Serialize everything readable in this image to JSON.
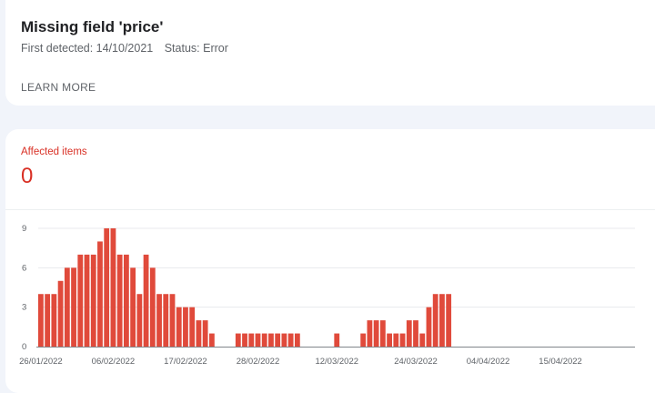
{
  "issue": {
    "title": "Missing field 'price'",
    "first_detected": "First detected: 14/10/2021",
    "status": "Status: Error",
    "learn_more": "LEARN MORE"
  },
  "affected": {
    "label": "Affected items",
    "count": "0"
  },
  "colors": {
    "bar": "#e04a3b",
    "accent": "#d93025"
  },
  "chart_data": {
    "type": "bar",
    "title": "",
    "xlabel": "",
    "ylabel": "",
    "ylim": [
      0,
      9
    ],
    "yticks": [
      0,
      3,
      6,
      9
    ],
    "grid": true,
    "start_date": "26/01/2022",
    "xtick_labels": [
      "26/01/2022",
      "06/02/2022",
      "17/02/2022",
      "28/02/2022",
      "12/03/2022",
      "24/03/2022",
      "04/04/2022",
      "15/04/2022"
    ],
    "categories": [
      "26/01/2022",
      "27/01/2022",
      "28/01/2022",
      "29/01/2022",
      "30/01/2022",
      "31/01/2022",
      "01/02/2022",
      "02/02/2022",
      "03/02/2022",
      "04/02/2022",
      "05/02/2022",
      "06/02/2022",
      "07/02/2022",
      "08/02/2022",
      "09/02/2022",
      "10/02/2022",
      "11/02/2022",
      "12/02/2022",
      "13/02/2022",
      "14/02/2022",
      "15/02/2022",
      "16/02/2022",
      "17/02/2022",
      "18/02/2022",
      "19/02/2022",
      "20/02/2022",
      "21/02/2022",
      "22/02/2022",
      "23/02/2022",
      "24/02/2022",
      "25/02/2022",
      "26/02/2022",
      "27/02/2022",
      "28/02/2022",
      "01/03/2022",
      "02/03/2022",
      "03/03/2022",
      "04/03/2022",
      "05/03/2022",
      "06/03/2022",
      "07/03/2022",
      "08/03/2022",
      "09/03/2022",
      "10/03/2022",
      "11/03/2022",
      "12/03/2022",
      "13/03/2022",
      "14/03/2022",
      "15/03/2022",
      "16/03/2022",
      "17/03/2022",
      "18/03/2022",
      "19/03/2022",
      "20/03/2022",
      "21/03/2022",
      "22/03/2022",
      "23/03/2022",
      "24/03/2022",
      "25/03/2022",
      "26/03/2022",
      "27/03/2022",
      "28/03/2022",
      "29/03/2022",
      "30/03/2022",
      "31/03/2022",
      "01/04/2022",
      "02/04/2022",
      "03/04/2022",
      "04/04/2022",
      "05/04/2022",
      "06/04/2022",
      "07/04/2022",
      "08/04/2022",
      "09/04/2022",
      "10/04/2022",
      "11/04/2022",
      "12/04/2022",
      "13/04/2022",
      "14/04/2022",
      "15/04/2022",
      "16/04/2022",
      "17/04/2022",
      "18/04/2022",
      "19/04/2022",
      "20/04/2022",
      "21/04/2022",
      "22/04/2022",
      "23/04/2022",
      "24/04/2022",
      "25/04/2022",
      "26/04/2022"
    ],
    "values": [
      4,
      4,
      4,
      5,
      6,
      6,
      7,
      7,
      7,
      8,
      9,
      9,
      7,
      7,
      6,
      4,
      7,
      6,
      4,
      4,
      4,
      3,
      3,
      3,
      2,
      2,
      1,
      0,
      0,
      0,
      1,
      1,
      1,
      1,
      1,
      1,
      1,
      1,
      1,
      1,
      0,
      0,
      0,
      0,
      0,
      1,
      0,
      0,
      0,
      1,
      2,
      2,
      2,
      1,
      1,
      1,
      2,
      2,
      1,
      3,
      4,
      4,
      4,
      0,
      0,
      0,
      0,
      0,
      0,
      0,
      0,
      0,
      0,
      0,
      0,
      0,
      0,
      0,
      0,
      0,
      0,
      0,
      0,
      0,
      0,
      0,
      0,
      0,
      0,
      0,
      0
    ]
  }
}
